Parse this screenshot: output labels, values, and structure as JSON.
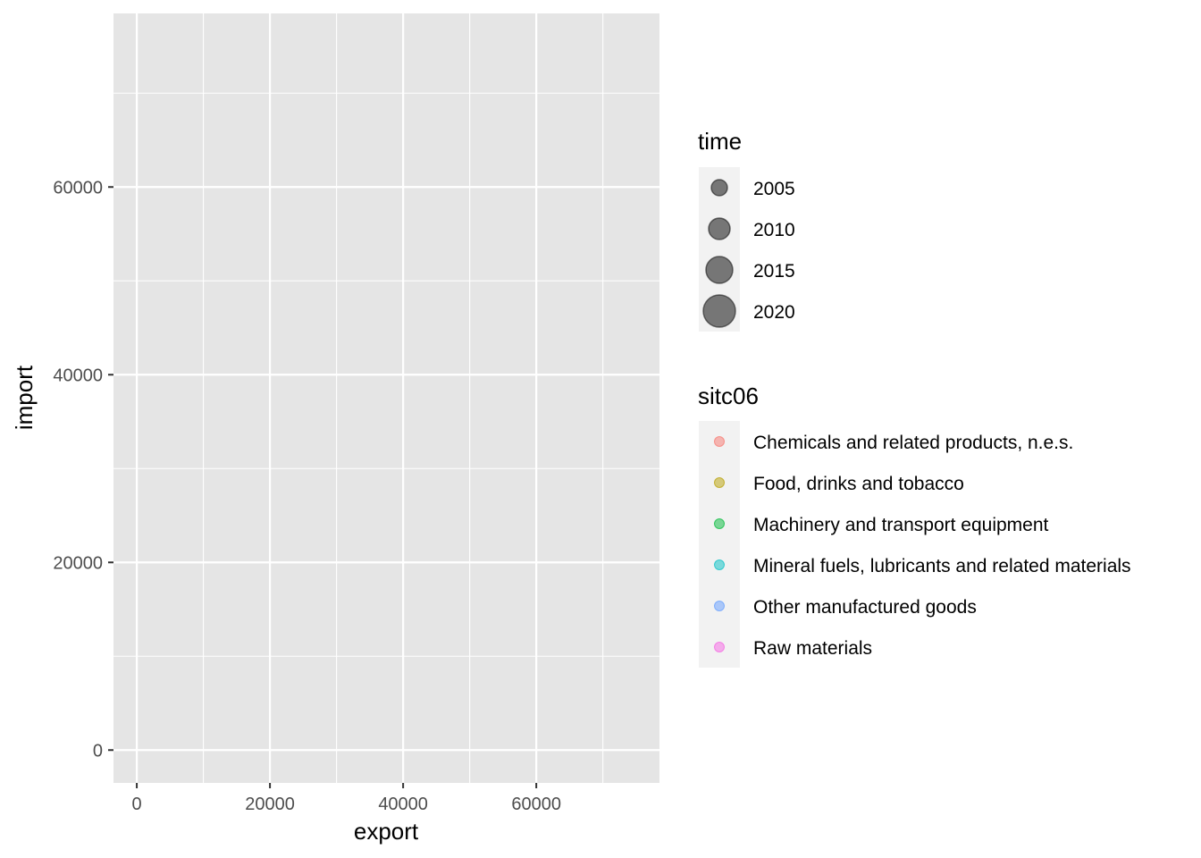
{
  "chart_data": {
    "type": "scatter",
    "title": "",
    "xlabel": "export",
    "ylabel": "import",
    "xlim": [
      -3500,
      78500
    ],
    "ylim": [
      -3500,
      78500
    ],
    "x_ticks": [
      0,
      20000,
      40000,
      60000
    ],
    "y_ticks": [
      0,
      20000,
      40000,
      60000
    ],
    "x_tick_labels": [
      "0",
      "20000",
      "40000",
      "60000"
    ],
    "y_tick_labels": [
      "0",
      "20000",
      "40000",
      "60000"
    ],
    "grid": true,
    "panel_background": "#e5e5e5",
    "grid_color": "#ffffff",
    "points": [],
    "legends": [
      {
        "title": "time",
        "kind": "size",
        "entries": [
          {
            "label": "2005",
            "value": 2005
          },
          {
            "label": "2010",
            "value": 2010
          },
          {
            "label": "2015",
            "value": 2015
          },
          {
            "label": "2020",
            "value": 2020
          }
        ],
        "color": "#333333"
      },
      {
        "title": "sitc06",
        "kind": "color",
        "entries": [
          {
            "label": "Chemicals and related products, n.e.s.",
            "color": "#F8766D"
          },
          {
            "label": "Food, drinks and tobacco",
            "color": "#B79F00"
          },
          {
            "label": "Machinery and transport equipment",
            "color": "#00BA38"
          },
          {
            "label": "Mineral fuels, lubricants and related materials",
            "color": "#00BFC4"
          },
          {
            "label": "Other manufactured goods",
            "color": "#619CFF"
          },
          {
            "label": "Raw materials",
            "color": "#F564E3"
          }
        ]
      }
    ],
    "legend_position": "right"
  }
}
